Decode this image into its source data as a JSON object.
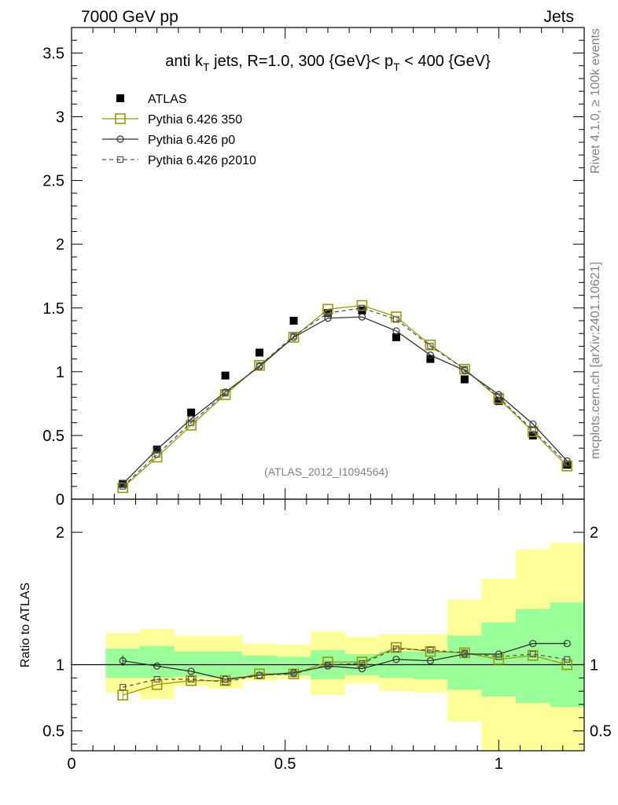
{
  "header": {
    "left": "7000 GeV pp",
    "right": "Jets"
  },
  "side_text": {
    "rivet": "Rivet 4.1.0, ≥ 100k events",
    "mcplots": "mcplots.cern.ch [arXiv:2401.10621]"
  },
  "chart_data": [
    {
      "type": "line",
      "panel": "main",
      "title": {
        "a": "anti k",
        "sub1": "T",
        "b": " jets, R=1.0,  300 {GeV}< p",
        "sub2": "T",
        "c": " < 400 {GeV}"
      },
      "watermark": "(ATLAS_2012_I1094564)",
      "xlim": [
        0,
        1.2
      ],
      "ylim": [
        0,
        3.7
      ],
      "yticks": [
        0,
        0.5,
        1,
        1.5,
        2,
        2.5,
        3,
        3.5
      ],
      "ytick_labels": [
        "0",
        "0.5",
        "1",
        "1.5",
        "2",
        "2.5",
        "3",
        "3.5"
      ],
      "x": [
        0.12,
        0.2,
        0.28,
        0.36,
        0.44,
        0.52,
        0.6,
        0.68,
        0.76,
        0.84,
        0.92,
        1.0,
        1.08,
        1.16
      ],
      "series": [
        {
          "name": "ATLAS",
          "color": "#000000",
          "marker": "filled-square",
          "line": "none",
          "values": [
            0.12,
            0.39,
            0.68,
            0.97,
            1.15,
            1.4,
            1.46,
            1.48,
            1.27,
            1.1,
            0.94,
            0.77,
            0.5,
            0.27
          ]
        },
        {
          "name": "Pythia 6.426 350",
          "color": "#999900",
          "marker": "open-square",
          "line": "solid",
          "values": [
            0.09,
            0.33,
            0.58,
            0.82,
            1.05,
            1.27,
            1.49,
            1.52,
            1.43,
            1.21,
            1.02,
            0.79,
            0.53,
            0.26
          ]
        },
        {
          "name": "Pythia 6.426 p0",
          "color": "#333333",
          "marker": "open-circle",
          "line": "solid",
          "values": [
            0.12,
            0.39,
            0.63,
            0.84,
            1.04,
            1.27,
            1.42,
            1.43,
            1.32,
            1.13,
            1.01,
            0.82,
            0.59,
            0.3
          ]
        },
        {
          "name": "Pythia 6.426 p2010",
          "color": "#555555",
          "marker": "small-open-square",
          "line": "dashed",
          "values": [
            0.1,
            0.35,
            0.6,
            0.83,
            1.05,
            1.28,
            1.46,
            1.5,
            1.41,
            1.2,
            1.02,
            0.8,
            0.54,
            0.28
          ]
        }
      ]
    },
    {
      "type": "line",
      "panel": "ratio",
      "ylabel": "Ratio to ATLAS",
      "xlim": [
        0,
        1.2
      ],
      "ylim": [
        0.35,
        2.25
      ],
      "xticks": [
        0,
        0.5,
        1
      ],
      "xtick_labels": [
        "0",
        "0.5",
        "1"
      ],
      "yticks": [
        0.5,
        1,
        2
      ],
      "ytick_labels": [
        "0.5",
        "1",
        "2"
      ],
      "bin_edges": [
        0.08,
        0.16,
        0.24,
        0.32,
        0.4,
        0.48,
        0.56,
        0.64,
        0.72,
        0.8,
        0.88,
        0.96,
        1.04,
        1.12,
        1.2
      ],
      "band_green": {
        "low": [
          0.9,
          0.9,
          0.91,
          0.9,
          0.92,
          0.92,
          0.89,
          0.92,
          0.9,
          0.89,
          0.81,
          0.76,
          0.71,
          0.68
        ],
        "high": [
          1.12,
          1.14,
          1.1,
          1.1,
          1.07,
          1.06,
          1.11,
          1.08,
          1.1,
          1.1,
          1.22,
          1.32,
          1.42,
          1.47
        ]
      },
      "band_yellow": {
        "low": [
          0.79,
          0.74,
          0.84,
          0.82,
          0.88,
          0.89,
          0.77,
          0.86,
          0.8,
          0.79,
          0.57,
          0.3,
          0.3,
          0.3
        ],
        "high": [
          1.24,
          1.27,
          1.22,
          1.22,
          1.16,
          1.15,
          1.25,
          1.21,
          1.23,
          1.23,
          1.49,
          1.65,
          1.87,
          1.92
        ]
      },
      "x": [
        0.12,
        0.2,
        0.28,
        0.36,
        0.44,
        0.52,
        0.6,
        0.68,
        0.76,
        0.84,
        0.92,
        1.0,
        1.08,
        1.16
      ],
      "series": [
        {
          "name": "Pythia 6.426 350",
          "color": "#999900",
          "marker": "open-square",
          "line": "solid",
          "values": [
            0.77,
            0.85,
            0.88,
            0.88,
            0.93,
            0.93,
            1.02,
            1.02,
            1.13,
            1.1,
            1.09,
            1.04,
            1.07,
            1.0
          ]
        },
        {
          "name": "Pythia 6.426 p0",
          "color": "#333333",
          "marker": "open-circle",
          "line": "solid",
          "values": [
            1.03,
            0.99,
            0.95,
            0.89,
            0.92,
            0.94,
            0.99,
            0.97,
            1.04,
            1.03,
            1.08,
            1.08,
            1.16,
            1.16
          ]
        },
        {
          "name": "Pythia 6.426 p2010",
          "color": "#555555",
          "marker": "small-open-square",
          "line": "dashed",
          "values": [
            0.83,
            0.89,
            0.89,
            0.87,
            0.92,
            0.93,
            1.0,
            1.01,
            1.12,
            1.11,
            1.09,
            1.06,
            1.08,
            1.04
          ]
        }
      ]
    }
  ]
}
